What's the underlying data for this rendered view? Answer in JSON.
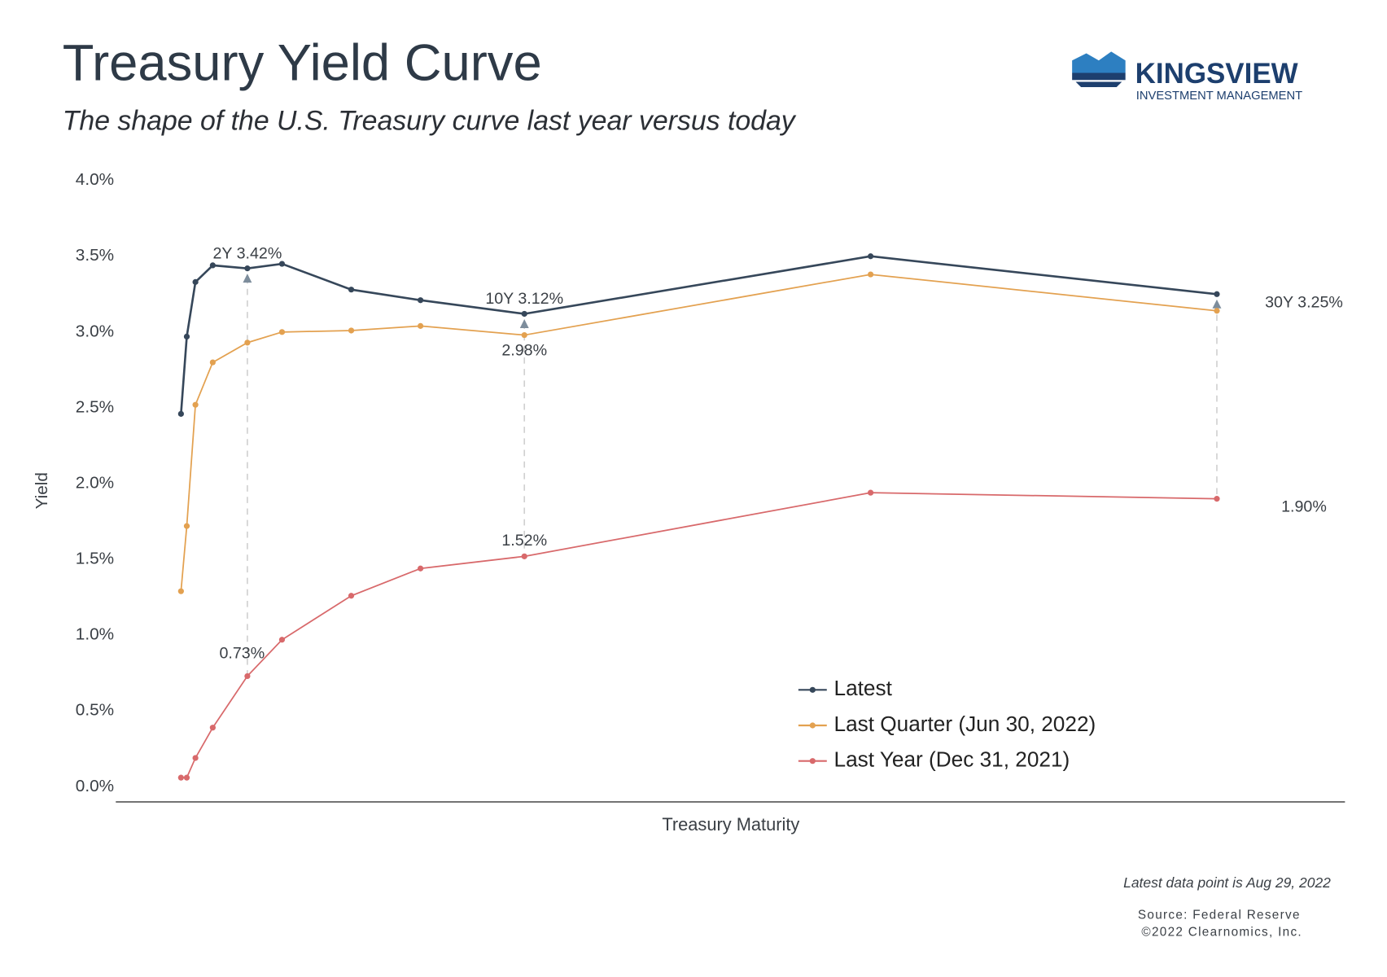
{
  "chart_data": {
    "type": "line",
    "title": "Treasury Yield Curve",
    "subtitle": "The shape of the U.S. Treasury curve last year versus today",
    "brand": "KINGSVIEW",
    "brand_subtitle": "INVESTMENT MANAGEMENT",
    "ylabel": "Yield",
    "xlabel": "Treasury Maturity",
    "note": "Latest data point is Aug 29, 2022",
    "source": "Source: Federal Reserve",
    "copyright": "©2022 Clearnomics, Inc.",
    "x": [
      0.083,
      0.25,
      0.5,
      1,
      2,
      3,
      5,
      7,
      10,
      20,
      30
    ],
    "xlim": [
      -1.8,
      33.7
    ],
    "ylim": [
      0,
      4
    ],
    "yticks": [
      {
        "value": 0,
        "label": "0.0%"
      },
      {
        "value": 0.5,
        "label": "0.5%"
      },
      {
        "value": 1,
        "label": "1.0%"
      },
      {
        "value": 1.5,
        "label": "1.5%"
      },
      {
        "value": 2,
        "label": "2.0%"
      },
      {
        "value": 2.5,
        "label": "2.5%"
      },
      {
        "value": 3,
        "label": "3.0%"
      },
      {
        "value": 3.5,
        "label": "3.5%"
      },
      {
        "value": 4,
        "label": "4.0%"
      }
    ],
    "grid": false,
    "series": [
      {
        "name": "Latest",
        "color": "#36475a",
        "values": [
          2.46,
          2.97,
          3.33,
          3.44,
          3.42,
          3.45,
          3.28,
          3.21,
          3.12,
          3.5,
          3.25
        ],
        "value_labels": [
          null,
          null,
          null,
          null,
          "2Y 3.42%",
          null,
          null,
          null,
          "10Y 3.12%",
          null,
          "30Y 3.25%"
        ]
      },
      {
        "name": "Last Quarter (Jun 30, 2022)",
        "color": "#e3a150",
        "values": [
          1.29,
          1.72,
          2.52,
          2.8,
          2.93,
          3.0,
          3.01,
          3.04,
          2.98,
          3.38,
          3.14
        ],
        "value_labels": [
          null,
          null,
          null,
          null,
          null,
          null,
          null,
          null,
          "2.98%",
          null,
          null
        ]
      },
      {
        "name": "Last Year (Dec 31, 2021)",
        "color": "#d8696b",
        "values": [
          0.06,
          0.06,
          0.19,
          0.39,
          0.73,
          0.97,
          1.26,
          1.44,
          1.52,
          1.94,
          1.9
        ],
        "value_labels": [
          null,
          null,
          null,
          null,
          "0.73%",
          null,
          null,
          null,
          "1.52%",
          null,
          "1.90%"
        ]
      }
    ]
  }
}
